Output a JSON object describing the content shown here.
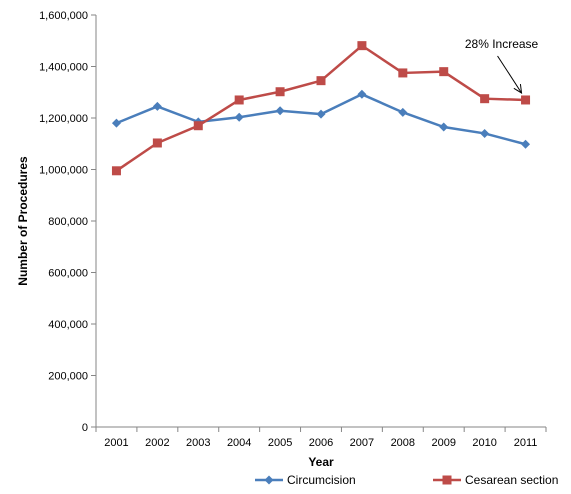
{
  "chart_data": {
    "type": "line",
    "title": "",
    "xlabel": "Year",
    "ylabel": "Number of Procedures",
    "categories": [
      "2001",
      "2002",
      "2003",
      "2004",
      "2005",
      "2006",
      "2007",
      "2008",
      "2009",
      "2010",
      "2011"
    ],
    "ylim": [
      0,
      1600000
    ],
    "yticks": [
      0,
      200000,
      400000,
      600000,
      800000,
      1000000,
      1200000,
      1400000,
      1600000
    ],
    "ytick_labels": [
      "0",
      "200,000",
      "400,000",
      "600,000",
      "800,000",
      "1,000,000",
      "1,200,000",
      "1,400,000",
      "1,600,000"
    ],
    "grid": false,
    "legend_position": "bottom",
    "series": [
      {
        "name": "Circumcision",
        "color": "#4a7ebb",
        "marker": "diamond",
        "values": [
          1180000,
          1245000,
          1185000,
          1203000,
          1228000,
          1215000,
          1292000,
          1222000,
          1165000,
          1140000,
          1098000
        ]
      },
      {
        "name": "Cesarean section",
        "color": "#be4b48",
        "marker": "square",
        "values": [
          995000,
          1103000,
          1170000,
          1270000,
          1302000,
          1345000,
          1481000,
          1375000,
          1380000,
          1275000,
          1270000
        ]
      }
    ],
    "annotation": {
      "text": "28% Increase",
      "series_index": 1,
      "point_index": 10
    }
  }
}
